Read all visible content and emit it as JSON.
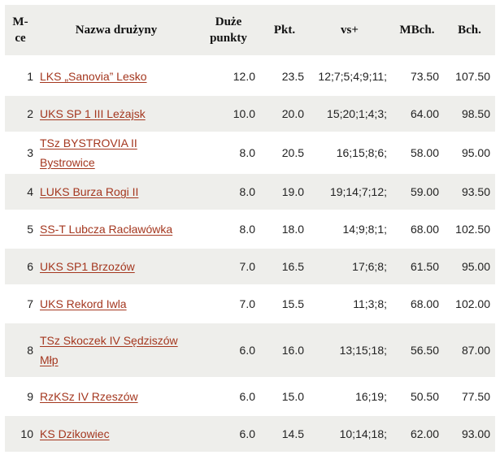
{
  "table": {
    "headers": {
      "rank": "M-ce",
      "team": "Nazwa drużyny",
      "big_points": "Duże punkty",
      "points": "Pkt.",
      "vs": "vs+",
      "mbch": "MBch.",
      "bch": "Bch."
    },
    "rows": [
      {
        "rank": "1",
        "team": "LKS „Sanovia” Lesko",
        "big_points": "12.0",
        "points": "23.5",
        "vs": "12;7;5;4;9;11;",
        "mbch": "73.50",
        "bch": "107.50"
      },
      {
        "rank": "2",
        "team": "UKS SP 1 III Leżajsk",
        "big_points": "10.0",
        "points": "20.0",
        "vs": "15;20;1;4;3;",
        "mbch": "64.00",
        "bch": "98.50"
      },
      {
        "rank": "3",
        "team": "TSz BYSTROVIA II Bystrowice",
        "big_points": "8.0",
        "points": "20.5",
        "vs": "16;15;8;6;",
        "mbch": "58.00",
        "bch": "95.00"
      },
      {
        "rank": "4",
        "team": "LUKS Burza Rogi II",
        "big_points": "8.0",
        "points": "19.0",
        "vs": "19;14;7;12;",
        "mbch": "59.00",
        "bch": "93.50"
      },
      {
        "rank": "5",
        "team": "SS-T Lubcza Racławówka",
        "big_points": "8.0",
        "points": "18.0",
        "vs": "14;9;8;1;",
        "mbch": "68.00",
        "bch": "102.50"
      },
      {
        "rank": "6",
        "team": "UKS SP1 Brzozów",
        "big_points": "7.0",
        "points": "16.5",
        "vs": "17;6;8;",
        "mbch": "61.50",
        "bch": "95.00"
      },
      {
        "rank": "7",
        "team": "UKS Rekord Iwla",
        "big_points": "7.0",
        "points": "15.5",
        "vs": "11;3;8;",
        "mbch": "68.00",
        "bch": "102.00"
      },
      {
        "rank": "8",
        "team": "TSz Skoczek IV Sędziszów Młp",
        "big_points": "6.0",
        "points": "16.0",
        "vs": "13;15;18;",
        "mbch": "56.50",
        "bch": "87.00"
      },
      {
        "rank": "9",
        "team": "RzKSz IV Rzeszów",
        "big_points": "6.0",
        "points": "15.0",
        "vs": "16;19;",
        "mbch": "50.50",
        "bch": "77.50"
      },
      {
        "rank": "10",
        "team": "KS Dzikowiec",
        "big_points": "6.0",
        "points": "14.5",
        "vs": "10;14;18;",
        "mbch": "62.00",
        "bch": "93.00"
      }
    ]
  },
  "colors": {
    "link": "#a4371f",
    "stripe": "#eeeeeb",
    "header_bg": "#eeeeeb"
  }
}
